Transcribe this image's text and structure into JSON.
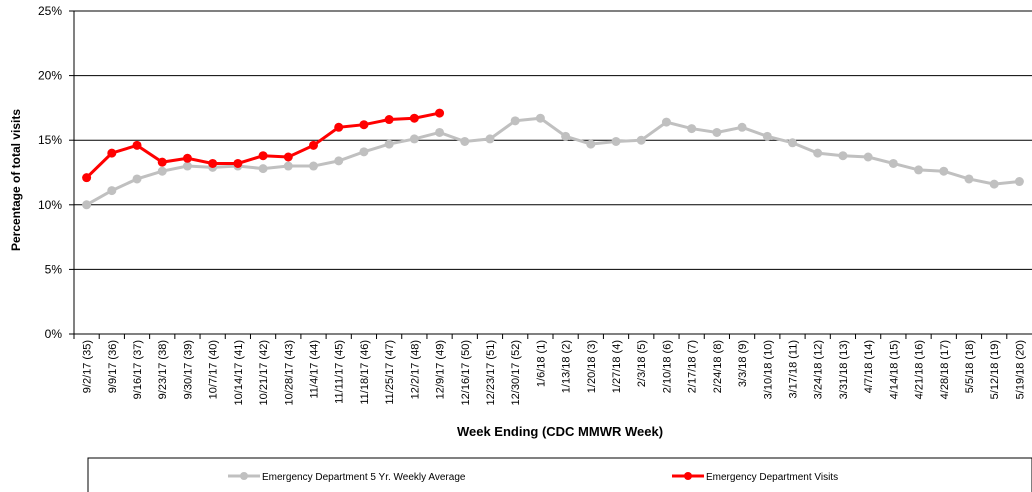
{
  "chart_data": {
    "type": "line",
    "y_label": "Percentage of total visits",
    "x_label": "Week Ending (CDC MMWR Week)",
    "categories": [
      "9/2/17 (35)",
      "9/9/17 (36)",
      "9/16/17 (37)",
      "9/23/17 (38)",
      "9/30/17 (39)",
      "10/7/17 (40)",
      "10/14/17 (41)",
      "10/21/17 (42)",
      "10/28/17 (43)",
      "11/4/17 (44)",
      "11/11/17 (45)",
      "11/18/17 (46)",
      "11/25/17 (47)",
      "12/2/17 (48)",
      "12/9/17 (49)",
      "12/16/17 (50)",
      "12/23/17 (51)",
      "12/30/17 (52)",
      "1/6/18 (1)",
      "1/13/18 (2)",
      "1/20/18 (3)",
      "1/27/18 (4)",
      "2/3/18 (5)",
      "2/10/18 (6)",
      "2/17/18 (7)",
      "2/24/18 (8)",
      "3/3/18 (9)",
      "3/10/18 (10)",
      "3/17/18 (11)",
      "3/24/18 (12)",
      "3/31/18 (13)",
      "4/7/18 (14)",
      "4/14/18 (15)",
      "4/21/18 (16)",
      "4/28/18 (17)",
      "5/5/18 (18)",
      "5/12/18 (19)",
      "5/19/18 (20)"
    ],
    "series": [
      {
        "name": "Emergency Department 5 Yr. Weekly Average",
        "color": "#c0c0c0",
        "values": [
          10.0,
          11.1,
          12.0,
          12.6,
          13.0,
          12.9,
          13.0,
          12.8,
          13.0,
          13.0,
          13.4,
          14.1,
          14.7,
          15.1,
          15.6,
          14.9,
          15.1,
          16.5,
          16.7,
          15.3,
          14.7,
          14.9,
          15.0,
          16.4,
          15.9,
          15.6,
          16.0,
          15.3,
          14.8,
          14.0,
          13.8,
          13.7,
          13.2,
          12.7,
          12.6,
          12.0,
          11.6,
          11.8
        ]
      },
      {
        "name": "Emergency Department Visits",
        "color": "#ff0000",
        "values": [
          12.1,
          14.0,
          14.6,
          13.3,
          13.6,
          13.2,
          13.2,
          13.8,
          13.7,
          14.6,
          16.0,
          16.2,
          16.6,
          16.7,
          17.1,
          null,
          null,
          null,
          null,
          null,
          null,
          null,
          null,
          null,
          null,
          null,
          null,
          null,
          null,
          null,
          null,
          null,
          null,
          null,
          null,
          null,
          null,
          null
        ]
      }
    ],
    "ylim": [
      0,
      25
    ],
    "yticks": [
      {
        "value": 0,
        "label": "0%"
      },
      {
        "value": 5,
        "label": "5%"
      },
      {
        "value": 10,
        "label": "10%"
      },
      {
        "value": 15,
        "label": "15%"
      },
      {
        "value": 20,
        "label": "20%"
      },
      {
        "value": 25,
        "label": "25%"
      }
    ],
    "grid": true
  }
}
